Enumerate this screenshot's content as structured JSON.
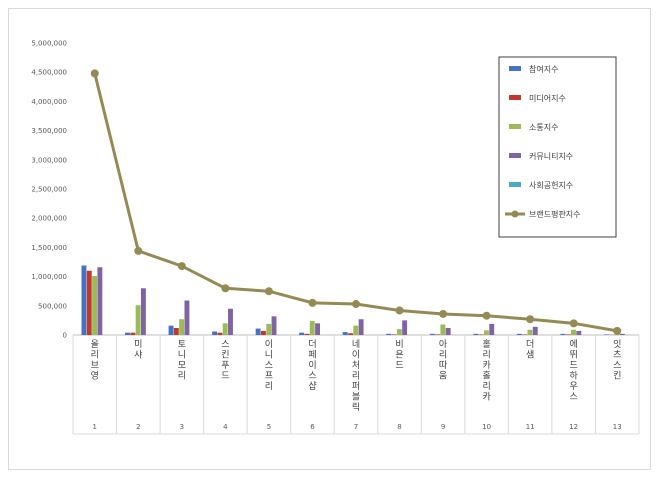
{
  "chart_data": {
    "type": "bar",
    "categories": [
      "올리브영",
      "미샤",
      "토니모리",
      "스킨푸드",
      "이니스프리",
      "더페이스샵",
      "네이처리퍼블릭",
      "비욘드",
      "아리따움",
      "홀리카홀리카",
      "더샘",
      "에뛰드하우스",
      "잇츠스킨"
    ],
    "ranks": [
      "1",
      "2",
      "3",
      "4",
      "5",
      "6",
      "7",
      "8",
      "9",
      "10",
      "11",
      "12",
      "13"
    ],
    "ylim": [
      0,
      5000000
    ],
    "yticks": [
      "0",
      "500,000",
      "1,000,000",
      "1,500,000",
      "2,000,000",
      "2,500,000",
      "3,000,000",
      "3,500,000",
      "4,000,000",
      "4,500,000",
      "5,000,000"
    ],
    "series": [
      {
        "name": "참여지수",
        "kind": "bar",
        "color": "#4472c4",
        "values": [
          1190000,
          40000,
          160000,
          60000,
          110000,
          40000,
          50000,
          20000,
          20000,
          20000,
          20000,
          20000,
          10000
        ]
      },
      {
        "name": "미디어지수",
        "kind": "bar",
        "color": "#c0392b",
        "values": [
          1100000,
          40000,
          120000,
          40000,
          70000,
          20000,
          30000,
          10000,
          10000,
          10000,
          10000,
          10000,
          5000
        ]
      },
      {
        "name": "소통지수",
        "kind": "bar",
        "color": "#9bbb59",
        "values": [
          1010000,
          510000,
          270000,
          200000,
          190000,
          240000,
          160000,
          100000,
          180000,
          80000,
          90000,
          90000,
          30000
        ]
      },
      {
        "name": "커뮤니티지수",
        "kind": "bar",
        "color": "#8064a2",
        "values": [
          1160000,
          800000,
          590000,
          450000,
          320000,
          200000,
          270000,
          250000,
          120000,
          190000,
          140000,
          70000,
          20000
        ]
      },
      {
        "name": "사회공헌지수",
        "kind": "bar",
        "color": "#4bacc6",
        "values": [
          0,
          0,
          0,
          0,
          0,
          0,
          0,
          0,
          0,
          0,
          0,
          0,
          0
        ]
      },
      {
        "name": "브랜드평판지수",
        "kind": "line",
        "color": "#948a54",
        "values": [
          4480000,
          1440000,
          1180000,
          800000,
          750000,
          550000,
          530000,
          420000,
          360000,
          330000,
          270000,
          200000,
          70000
        ]
      }
    ]
  }
}
